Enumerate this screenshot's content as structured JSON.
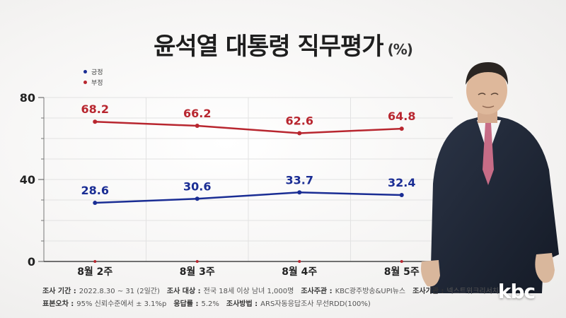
{
  "title": "윤석열 대통령 직무평가",
  "title_unit": "(%)",
  "colors": {
    "positive": "#1a2d94",
    "negative": "#b8262f"
  },
  "chart_data": {
    "type": "line",
    "categories": [
      "8월 2주",
      "8월 3주",
      "8월 4주",
      "8월 5주"
    ],
    "series": [
      {
        "name": "부정",
        "values": [
          68.2,
          66.2,
          62.6,
          64.8
        ],
        "labels": [
          "68.2",
          "66.2",
          "62.6",
          "64.8"
        ]
      },
      {
        "name": "긍정",
        "values": [
          28.6,
          30.6,
          33.7,
          32.4
        ],
        "labels": [
          "28.6",
          "30.6",
          "33.7",
          "32.4"
        ]
      }
    ],
    "ylim": [
      0,
      80
    ],
    "yticks": [
      "0",
      "40",
      "80"
    ],
    "legend": [
      "긍정",
      "부정"
    ],
    "grid": true
  },
  "footer": {
    "line1": [
      {
        "label": "조사 기간 :",
        "value": "2022.8.30 ~ 31 (2일간)"
      },
      {
        "label": "조사 대상 :",
        "value": "전국 18세 이상 남녀 1,000명"
      },
      {
        "label": "조사주관 :",
        "value": "KBC광주방송&UPI뉴스"
      },
      {
        "label": "조사기관 :",
        "value": "넥스트위크리서치"
      }
    ],
    "line2": [
      {
        "label": "표본오차 :",
        "value": "95% 신뢰수준에서 ± 3.1%p"
      },
      {
        "label": "응답률 :",
        "value": "5.2%"
      },
      {
        "label": "조사방법 :",
        "value": "ARS자동응답조사 무선RDD(100%)"
      }
    ]
  },
  "logo": "kbc"
}
